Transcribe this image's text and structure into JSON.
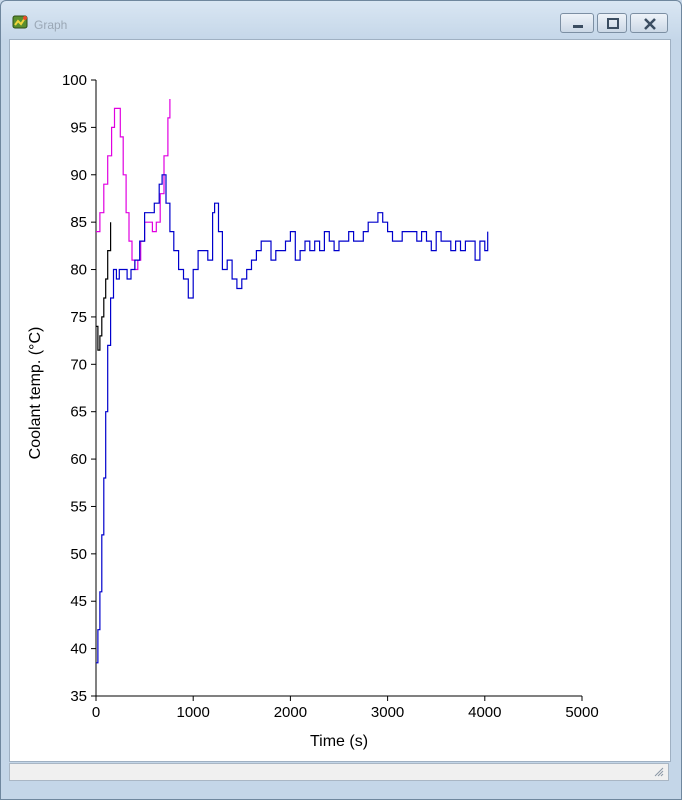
{
  "window": {
    "title": "Graph",
    "icon": "graph-app-icon"
  },
  "chart_data": {
    "type": "line",
    "xlabel": "Time (s)",
    "ylabel": "Coolant temp. (°C)",
    "xlim": [
      0,
      5000
    ],
    "ylim": [
      35,
      100
    ],
    "xticks": [
      0,
      1000,
      2000,
      3000,
      4000,
      5000
    ],
    "yticks": [
      35,
      40,
      45,
      50,
      55,
      60,
      65,
      70,
      75,
      80,
      85,
      90,
      95,
      100
    ],
    "grid": false,
    "legend": "none",
    "series": [
      {
        "color": "#000000",
        "x": [
          0,
          20,
          40,
          60,
          80,
          100,
          120,
          150
        ],
        "y": [
          74,
          71.5,
          73,
          75,
          77,
          79,
          82,
          85
        ]
      },
      {
        "color": "#e000e0",
        "x": [
          0,
          40,
          80,
          120,
          160,
          190,
          220,
          250,
          280,
          310,
          340,
          370,
          400,
          430,
          460,
          500,
          540,
          580,
          620,
          660,
          700,
          740,
          760
        ],
        "y": [
          84,
          86,
          89,
          92,
          95,
          97,
          97,
          94,
          90,
          86,
          83,
          81,
          80,
          81,
          83,
          85,
          85,
          84,
          85,
          88,
          92,
          96,
          98
        ]
      },
      {
        "color": "#0000cc",
        "x": [
          0,
          20,
          40,
          60,
          80,
          100,
          120,
          150,
          180,
          210,
          240,
          280,
          320,
          360,
          400,
          450,
          500,
          550,
          600,
          650,
          680,
          720,
          760,
          800,
          850,
          900,
          950,
          1000,
          1050,
          1100,
          1150,
          1200,
          1220,
          1260,
          1300,
          1350,
          1400,
          1450,
          1500,
          1550,
          1600,
          1650,
          1700,
          1750,
          1800,
          1850,
          1900,
          1950,
          2000,
          2050,
          2100,
          2150,
          2200,
          2250,
          2300,
          2350,
          2400,
          2450,
          2500,
          2550,
          2600,
          2650,
          2700,
          2750,
          2800,
          2850,
          2900,
          2950,
          3000,
          3050,
          3100,
          3150,
          3200,
          3250,
          3300,
          3350,
          3400,
          3450,
          3500,
          3550,
          3600,
          3650,
          3700,
          3750,
          3800,
          3850,
          3900,
          3950,
          4000,
          4030
        ],
        "y": [
          38.5,
          42,
          46,
          52,
          58,
          65,
          72,
          77,
          80,
          79,
          80,
          80,
          79,
          80,
          81,
          83,
          86,
          86,
          87,
          89,
          90,
          87,
          84,
          82,
          80,
          79,
          77,
          80,
          82,
          82,
          81,
          86,
          87,
          84,
          80,
          81,
          79,
          78,
          79,
          80,
          81,
          82,
          83,
          83,
          81,
          82,
          82,
          83,
          84,
          81,
          82,
          83,
          82,
          83,
          82,
          84,
          83,
          82,
          83,
          83,
          84,
          83,
          83,
          84,
          85,
          85,
          86,
          85,
          84,
          83,
          83,
          84,
          84,
          84,
          83,
          84,
          83,
          82,
          84,
          83,
          83,
          82,
          83,
          82,
          83,
          83,
          81,
          83,
          82,
          84
        ]
      }
    ]
  }
}
